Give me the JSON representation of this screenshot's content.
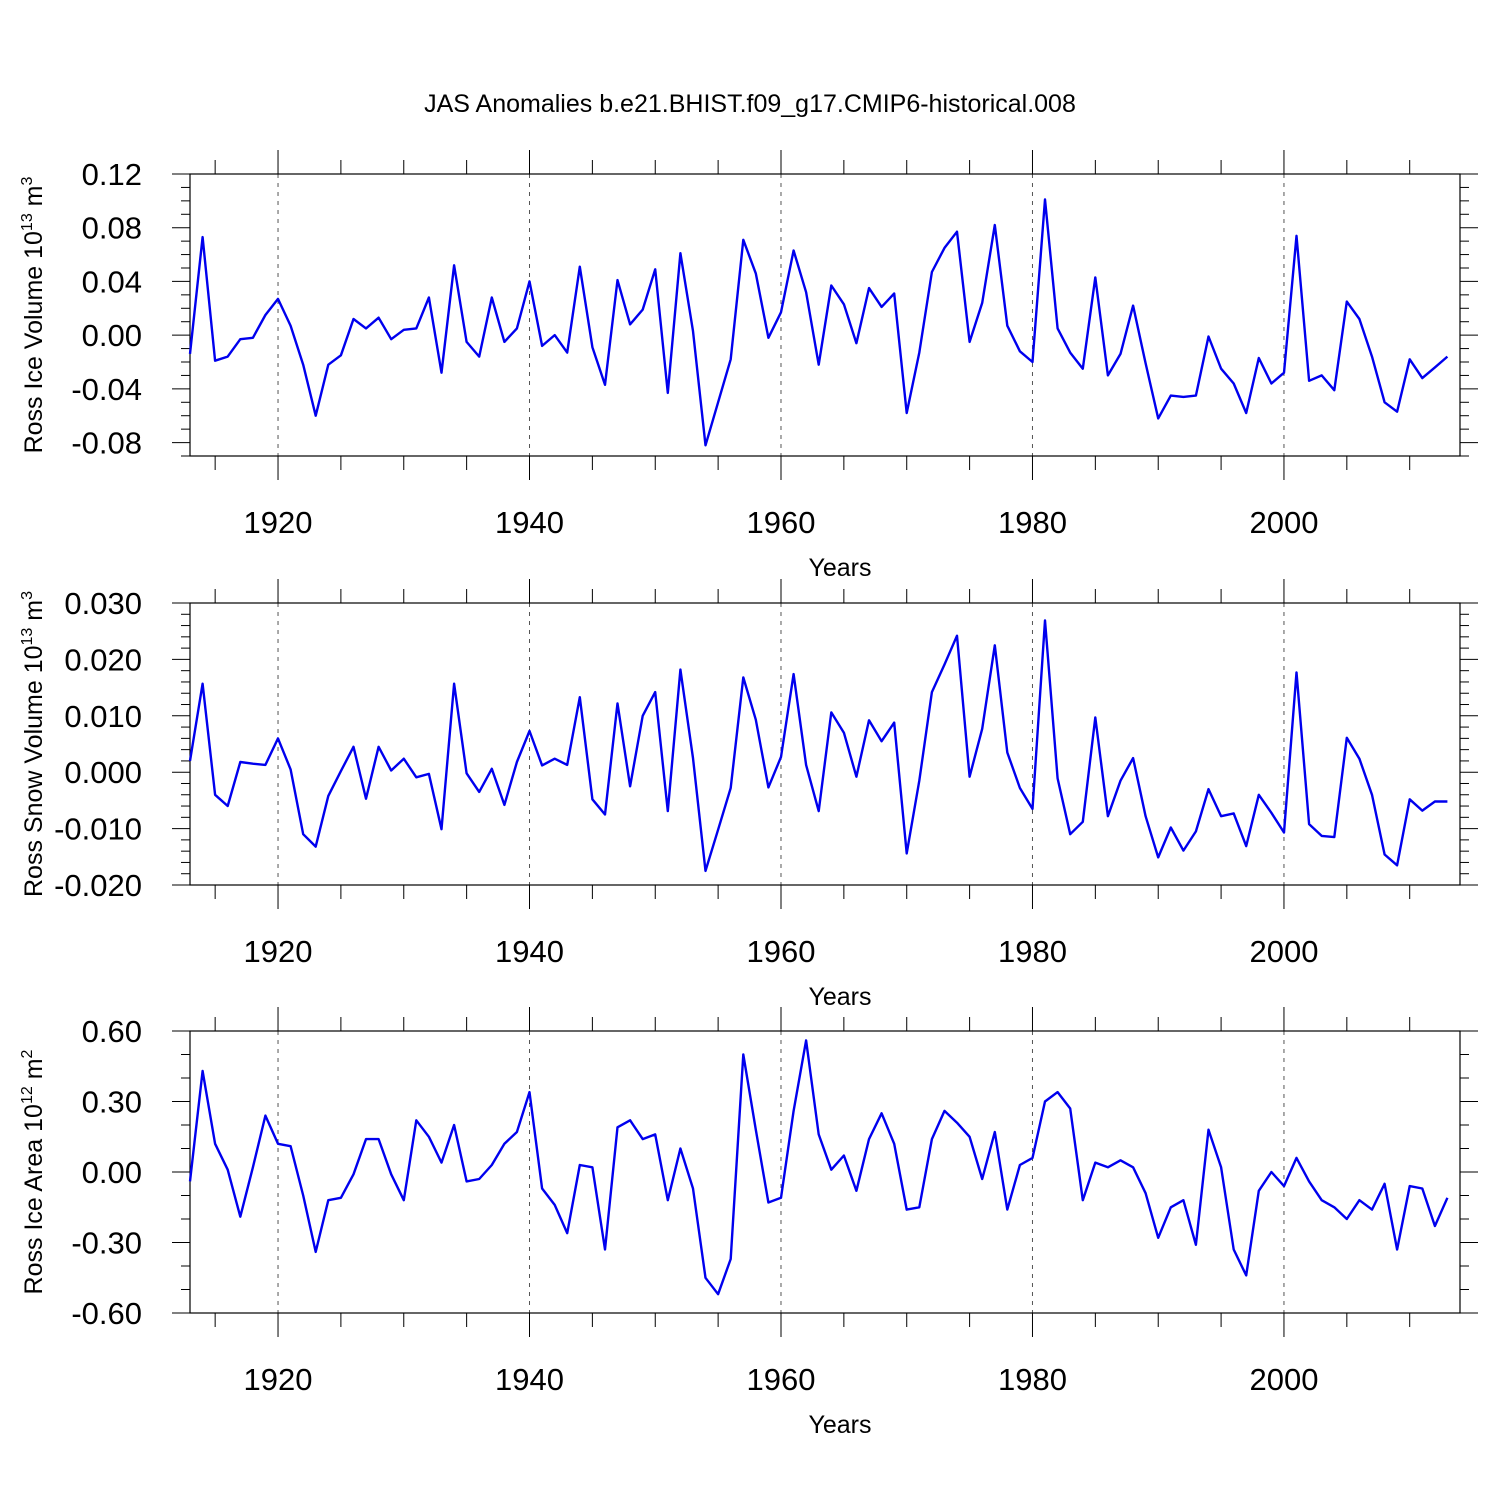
{
  "title": "JAS Anomalies b.e21.BHIST.f09_g17.CMIP6-historical.008",
  "series_color": "#0000ee",
  "chart_data": [
    {
      "type": "line",
      "ylabel": "Ross Ice Volume 10",
      "ylabel_exp": "13",
      "ylabel_unit": " m",
      "ylabel_unit_exp": "3",
      "xlabel": "Years",
      "xlim": [
        1913,
        2014
      ],
      "ylim": [
        -0.09,
        0.12
      ],
      "xticks": [
        1920,
        1940,
        1960,
        1980,
        2000
      ],
      "xtick_labels": [
        "1920",
        "1940",
        "1960",
        "1980",
        "2000"
      ],
      "yticks": [
        -0.08,
        -0.04,
        0.0,
        0.04,
        0.08,
        0.12
      ],
      "ytick_labels": [
        "-0.08",
        "-0.04",
        "0.00",
        "0.04",
        "0.08",
        "0.12"
      ],
      "yminor_step": 0.01,
      "grid": "vertical dashed at major x ticks",
      "x_start": 1913,
      "values": [
        -0.014,
        0.073,
        -0.019,
        -0.016,
        -0.003,
        -0.002,
        0.015,
        0.027,
        0.007,
        -0.022,
        -0.06,
        -0.022,
        -0.015,
        0.012,
        0.005,
        0.013,
        -0.003,
        0.004,
        0.005,
        0.028,
        -0.028,
        0.052,
        -0.005,
        -0.016,
        0.028,
        -0.005,
        0.005,
        0.04,
        -0.008,
        0.0,
        -0.013,
        0.051,
        -0.009,
        -0.037,
        0.041,
        0.008,
        0.019,
        0.049,
        -0.043,
        0.061,
        0.003,
        -0.082,
        -0.05,
        -0.018,
        0.071,
        0.046,
        -0.002,
        0.017,
        0.063,
        0.032,
        -0.022,
        0.037,
        0.023,
        -0.006,
        0.035,
        0.021,
        0.031,
        -0.058,
        -0.013,
        0.047,
        0.065,
        0.077,
        -0.005,
        0.024,
        0.082,
        0.007,
        -0.012,
        -0.02,
        0.101,
        0.005,
        -0.013,
        -0.025,
        0.043,
        -0.03,
        -0.014,
        0.022,
        -0.021,
        -0.062,
        -0.045,
        -0.046,
        -0.045,
        -0.001,
        -0.025,
        -0.036,
        -0.058,
        -0.017,
        -0.036,
        -0.028,
        0.074,
        -0.034,
        -0.03,
        -0.041,
        0.025,
        0.012,
        -0.016,
        -0.05,
        -0.057,
        -0.018,
        -0.032,
        -0.024,
        -0.016
      ]
    },
    {
      "type": "line",
      "ylabel": "Ross Snow Volume 10",
      "ylabel_exp": "13",
      "ylabel_unit": " m",
      "ylabel_unit_exp": "3",
      "xlabel": "Years",
      "xlim": [
        1913,
        2014
      ],
      "ylim": [
        -0.02,
        0.03
      ],
      "xticks": [
        1920,
        1940,
        1960,
        1980,
        2000
      ],
      "xtick_labels": [
        "1920",
        "1940",
        "1960",
        "1980",
        "2000"
      ],
      "yticks": [
        -0.02,
        -0.01,
        0.0,
        0.01,
        0.02,
        0.03
      ],
      "ytick_labels": [
        "-0.020",
        "-0.010",
        "0.000",
        "0.010",
        "0.020",
        "0.030"
      ],
      "yminor_step": 0.002,
      "grid": "vertical dashed at major x ticks",
      "x_start": 1913,
      "values": [
        0.002,
        0.0157,
        -0.004,
        -0.006,
        0.0018,
        0.0015,
        0.0013,
        0.006,
        0.0005,
        -0.011,
        -0.0132,
        -0.0042,
        0.0002,
        0.0045,
        -0.0047,
        0.0045,
        0.0003,
        0.0024,
        -0.0009,
        -0.0003,
        -0.0101,
        0.0157,
        -0.0002,
        -0.0035,
        0.0006,
        -0.0058,
        0.0018,
        0.0073,
        0.0012,
        0.0024,
        0.0013,
        0.0133,
        -0.0048,
        -0.0075,
        0.0122,
        -0.0025,
        0.01,
        0.0142,
        -0.0069,
        0.0182,
        0.0025,
        -0.0175,
        -0.0102,
        -0.0028,
        0.0168,
        0.0093,
        -0.0027,
        0.0027,
        0.0174,
        0.0013,
        -0.0069,
        0.0106,
        0.007,
        -0.0008,
        0.0092,
        0.0055,
        0.0088,
        -0.0144,
        -0.0015,
        0.0142,
        0.0191,
        0.0242,
        -0.0008,
        0.0077,
        0.0225,
        0.0035,
        -0.0028,
        -0.0065,
        0.0269,
        -0.0011,
        -0.011,
        -0.0088,
        0.0097,
        -0.0078,
        -0.0015,
        0.0025,
        -0.0078,
        -0.0151,
        -0.0098,
        -0.0139,
        -0.0105,
        -0.003,
        -0.0078,
        -0.0073,
        -0.0131,
        -0.004,
        -0.0072,
        -0.0107,
        0.0177,
        -0.0092,
        -0.0113,
        -0.0115,
        0.0061,
        0.0024,
        -0.004,
        -0.0146,
        -0.0165,
        -0.0048,
        -0.0068,
        -0.0052,
        -0.0052
      ]
    },
    {
      "type": "line",
      "ylabel": "Ross Ice Area 10",
      "ylabel_exp": "12",
      "ylabel_unit": " m",
      "ylabel_unit_exp": "2",
      "xlabel": "Years",
      "xlim": [
        1913,
        2014
      ],
      "ylim": [
        -0.6,
        0.6
      ],
      "xticks": [
        1920,
        1940,
        1960,
        1980,
        2000
      ],
      "xtick_labels": [
        "1920",
        "1940",
        "1960",
        "1980",
        "2000"
      ],
      "yticks": [
        -0.6,
        -0.3,
        0.0,
        0.3,
        0.6
      ],
      "ytick_labels": [
        "-0.60",
        "-0.30",
        "0.00",
        "0.30",
        "0.60"
      ],
      "yminor_step": 0.1,
      "grid": "vertical dashed at major x ticks",
      "x_start": 1913,
      "values": [
        -0.04,
        0.43,
        0.12,
        0.01,
        -0.19,
        0.02,
        0.24,
        0.12,
        0.11,
        -0.1,
        -0.34,
        -0.12,
        -0.11,
        -0.01,
        0.14,
        0.14,
        -0.01,
        -0.12,
        0.22,
        0.15,
        0.04,
        0.2,
        -0.04,
        -0.03,
        0.03,
        0.12,
        0.17,
        0.34,
        -0.07,
        -0.14,
        -0.26,
        0.03,
        0.02,
        -0.33,
        0.19,
        0.22,
        0.14,
        0.16,
        -0.12,
        0.1,
        -0.07,
        -0.45,
        -0.52,
        -0.37,
        0.5,
        0.18,
        -0.13,
        -0.11,
        0.26,
        0.56,
        0.16,
        0.01,
        0.07,
        -0.08,
        0.14,
        0.25,
        0.12,
        -0.16,
        -0.15,
        0.14,
        0.26,
        0.21,
        0.15,
        -0.03,
        0.17,
        -0.16,
        0.03,
        0.06,
        0.3,
        0.34,
        0.27,
        -0.12,
        0.04,
        0.02,
        0.05,
        0.02,
        -0.09,
        -0.28,
        -0.15,
        -0.12,
        -0.31,
        0.18,
        0.02,
        -0.33,
        -0.44,
        -0.08,
        0.0,
        -0.06,
        0.06,
        -0.04,
        -0.12,
        -0.15,
        -0.2,
        -0.12,
        -0.16,
        -0.05,
        -0.33,
        -0.06,
        -0.07,
        -0.23,
        -0.11
      ]
    }
  ]
}
